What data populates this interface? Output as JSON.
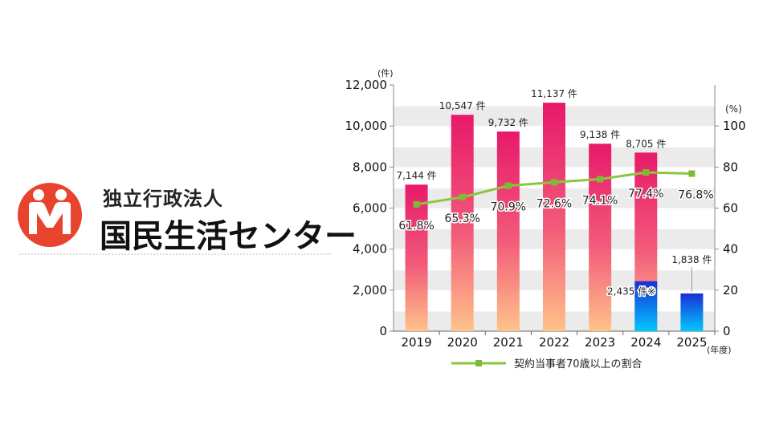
{
  "logo": {
    "org_line1": "独立行政法人",
    "org_line2": "国民生活センター",
    "mark_letter": "M",
    "colors": {
      "mark": "#e8432c",
      "text": "#111111"
    }
  },
  "chart_data": {
    "type": "bar",
    "categories": [
      "2019",
      "2020",
      "2021",
      "2022",
      "2023",
      "2024",
      "2025"
    ],
    "series": [
      {
        "values": [
          7144,
          10547,
          9732,
          11137,
          9138,
          8705,
          null
        ],
        "labels": [
          "7,144 件",
          "10,547 件",
          "9,732 件",
          "11,137 件",
          "9,138 件",
          "8,705 件",
          ""
        ]
      },
      {
        "values": [
          null,
          null,
          null,
          null,
          null,
          2435,
          1838
        ],
        "labels": [
          "",
          "",
          "",
          "",
          "",
          "2,435 件※",
          "1,838 件"
        ]
      }
    ],
    "line": {
      "name": "契約当事者70歳以上の割合",
      "values": [
        61.8,
        65.3,
        70.9,
        72.6,
        74.1,
        77.4,
        76.8
      ],
      "labels": [
        "61.8%",
        "65.3%",
        "70.9%",
        "72.6%",
        "74.1%",
        "77.4%",
        "76.8%"
      ]
    },
    "yleft": {
      "unit": "(件)",
      "ticks": [
        "0",
        "2,000",
        "4,000",
        "6,000",
        "8,000",
        "10,000",
        "12,000"
      ],
      "lim": [
        0,
        12000
      ]
    },
    "yright": {
      "unit": "(%)",
      "ticks": [
        "0",
        "20",
        "40",
        "60",
        "80",
        "100"
      ],
      "lim": [
        0,
        120
      ]
    },
    "xunit": "(年度)",
    "legend_position": "bottom",
    "grid": "horizontal bands",
    "colors": {
      "bar_top": "#e8196a",
      "bar_bottom": "#ffc38a",
      "bar2_top": "#1a2fd6",
      "bar2_bottom": "#00c8ff",
      "line": "#8cc63f",
      "marker": "#7dbb35",
      "band": "#ebebeb"
    }
  }
}
